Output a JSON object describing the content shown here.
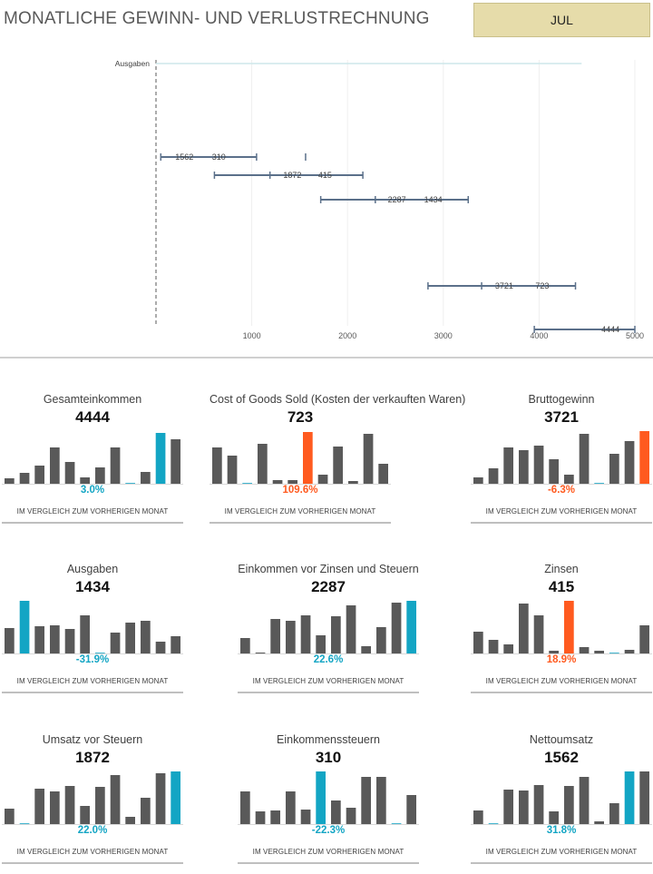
{
  "header": {
    "title": "MONATLICHE GEWINN- UND VERLUSTRECHNUNG",
    "month": "JUL"
  },
  "colors": {
    "bar": "#595959",
    "highlight_up": "#13a5c4",
    "highlight_down": "#ff5a1f",
    "waterfall": "#5b708a"
  },
  "chart_data": [
    {
      "type": "waterfall",
      "title": "",
      "xlim": [
        0,
        5000
      ],
      "x_ticks": [
        1000,
        2000,
        3000,
        4000,
        5000
      ],
      "categories": [
        "Ausgaben",
        "",
        "",
        "",
        "",
        "",
        ""
      ],
      "label_Ausgaben": "Ausgaben",
      "steps": [
        {
          "start": 4444,
          "end": 4444,
          "label": ""
        },
        {
          "start": 0,
          "end": 0,
          "label": ""
        },
        {
          "start": 50,
          "end": 1050,
          "mid": 1562,
          "labels": [
            "1562",
            "310"
          ]
        },
        {
          "start": 610,
          "end": 2160,
          "mid": 1190,
          "labels": [
            "1872",
            "415"
          ]
        },
        {
          "start": 1720,
          "end": 3260,
          "mid": 2290,
          "labels": [
            "2287",
            "1434"
          ]
        },
        {
          "start": 2840,
          "end": 4380,
          "mid": 3400,
          "labels": [
            "3721",
            "723"
          ]
        },
        {
          "start": 3950,
          "end": 5000,
          "mid": 5000,
          "labels": [
            "4444"
          ]
        }
      ]
    },
    {
      "type": "bar",
      "title": "Gesamteinkommen",
      "values": [
        6,
        12,
        20,
        40,
        24,
        7,
        18,
        40,
        0,
        13,
        56,
        49
      ],
      "highlight_index": 10
    },
    {
      "type": "bar",
      "title": "Cost of Goods Sold (Kosten der verkauften Waren)",
      "values": [
        40,
        31,
        0.5,
        44,
        4,
        4,
        57,
        10,
        41,
        3,
        55,
        22
      ],
      "highlight_index": 6
    },
    {
      "type": "bar",
      "title": "Bruttogewinn",
      "values": [
        7,
        17,
        40,
        37,
        42,
        27,
        10,
        55,
        0,
        33,
        47,
        58
      ],
      "highlight_index": 11
    },
    {
      "type": "bar",
      "title": "Ausgaben",
      "values": [
        28,
        58,
        30,
        31,
        27,
        42,
        0,
        23,
        34,
        36,
        13,
        19
      ],
      "highlight_index": 1
    },
    {
      "type": "bar",
      "title": "Einkommen vor Zinsen und Steuern",
      "values": [
        17,
        1,
        38,
        36,
        42,
        20,
        41,
        53,
        8,
        29,
        56,
        58
      ],
      "highlight_index": 11
    },
    {
      "type": "bar",
      "title": "Zinsen",
      "values": [
        24,
        15,
        10,
        55,
        42,
        3,
        58,
        7,
        3,
        0.5,
        4,
        31
      ],
      "highlight_index": 6
    },
    {
      "type": "bar",
      "title": "Umsatz vor Steuern",
      "values": [
        17,
        0.5,
        39,
        36,
        42,
        20,
        41,
        54,
        8,
        29,
        56,
        58
      ],
      "highlight_index": 11
    },
    {
      "type": "bar",
      "title": "Einkommenssteuern",
      "values": [
        36,
        14,
        15,
        36,
        16,
        58,
        26,
        18,
        52,
        52,
        0.5,
        32
      ],
      "highlight_index": 5
    },
    {
      "type": "bar",
      "title": "Nettoumsatz",
      "values": [
        15,
        0.5,
        38,
        37,
        43,
        14,
        42,
        52,
        3,
        23,
        58,
        58
      ],
      "highlight_index": 10
    }
  ],
  "kpis": [
    {
      "title": "Gesamteinkommen",
      "value": "4444",
      "change": "3.0%",
      "direction": "up",
      "caption": "IM VERGLEICH ZUM VORHERIGEN MONAT"
    },
    {
      "title": "Cost of Goods Sold (Kosten der verkauften Waren)",
      "value": "723",
      "change": "109.6%",
      "direction": "down",
      "caption": "IM VERGLEICH ZUM VORHERIGEN MONAT"
    },
    {
      "title": "Bruttogewinn",
      "value": "3721",
      "change": "-6.3%",
      "direction": "down",
      "caption": "IM VERGLEICH ZUM VORHERIGEN MONAT"
    },
    {
      "title": "Ausgaben",
      "value": "1434",
      "change": "-31.9%",
      "direction": "up",
      "caption": "IM VERGLEICH ZUM VORHERIGEN MONAT"
    },
    {
      "title": "Einkommen vor Zinsen und Steuern",
      "value": "2287",
      "change": "22.6%",
      "direction": "up",
      "caption": "IM VERGLEICH ZUM VORHERIGEN MONAT"
    },
    {
      "title": "Zinsen",
      "value": "415",
      "change": "18.9%",
      "direction": "down",
      "caption": "IM VERGLEICH ZUM VORHERIGEN MONAT"
    },
    {
      "title": "Umsatz vor Steuern",
      "value": "1872",
      "change": "22.0%",
      "direction": "up",
      "caption": "IM VERGLEICH ZUM VORHERIGEN MONAT"
    },
    {
      "title": "Einkommenssteuern",
      "value": "310",
      "change": "-22.3%",
      "direction": "up",
      "caption": "IM VERGLEICH ZUM VORHERIGEN MONAT"
    },
    {
      "title": "Nettoumsatz",
      "value": "1562",
      "change": "31.8%",
      "direction": "up",
      "caption": "IM VERGLEICH ZUM VORHERIGEN MONAT"
    }
  ]
}
